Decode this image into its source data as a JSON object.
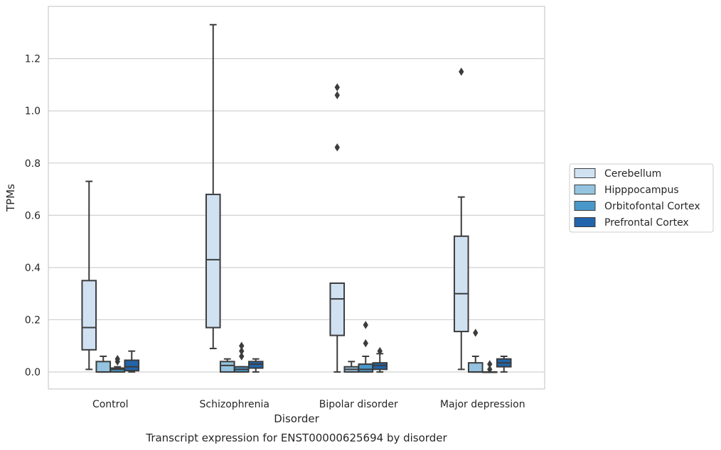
{
  "chart_data": {
    "type": "box",
    "caption": "Transcript expression for ENST00000625694 by disorder",
    "xlabel": "Disorder",
    "ylabel": "TPMs",
    "categories": [
      "Control",
      "Schizophrenia",
      "Bipolar disorder",
      "Major depression"
    ],
    "ylim": [
      -0.065,
      1.4
    ],
    "yticks": [
      0.0,
      0.2,
      0.4,
      0.6,
      0.8,
      1.0,
      1.2
    ],
    "ytick_labels": [
      "0.0",
      "0.2",
      "0.4",
      "0.6",
      "0.8",
      "1.0",
      "1.2"
    ],
    "grid": "horizontal",
    "legend_position": "right",
    "series": [
      {
        "name": "Cerebellum",
        "color": "#d0e1f2",
        "boxes": [
          {
            "whislo": 0.01,
            "q1": 0.085,
            "med": 0.17,
            "q3": 0.35,
            "whishi": 0.73,
            "fliers": []
          },
          {
            "whislo": 0.09,
            "q1": 0.17,
            "med": 0.43,
            "q3": 0.68,
            "whishi": 1.33,
            "fliers": []
          },
          {
            "whislo": 0.0,
            "q1": 0.14,
            "med": 0.28,
            "q3": 0.34,
            "whishi": 0.34,
            "fliers": [
              0.86,
              1.06,
              1.09
            ]
          },
          {
            "whislo": 0.01,
            "q1": 0.155,
            "med": 0.3,
            "q3": 0.52,
            "whishi": 0.67,
            "fliers": [
              1.15
            ]
          }
        ]
      },
      {
        "name": "Hipppocampus",
        "color": "#94c4df",
        "boxes": [
          {
            "whislo": 0.0,
            "q1": 0.0,
            "med": 0.0,
            "q3": 0.04,
            "whishi": 0.06,
            "fliers": []
          },
          {
            "whislo": 0.0,
            "q1": 0.0,
            "med": 0.025,
            "q3": 0.04,
            "whishi": 0.05,
            "fliers": []
          },
          {
            "whislo": 0.0,
            "q1": 0.0,
            "med": 0.01,
            "q3": 0.02,
            "whishi": 0.04,
            "fliers": []
          },
          {
            "whislo": 0.0,
            "q1": 0.0,
            "med": 0.0,
            "q3": 0.035,
            "whishi": 0.06,
            "fliers": [
              0.15
            ]
          }
        ]
      },
      {
        "name": "Orbitofontal Cortex",
        "color": "#4a98c9",
        "boxes": [
          {
            "whislo": 0.0,
            "q1": 0.0,
            "med": 0.01,
            "q3": 0.015,
            "whishi": 0.02,
            "fliers": [
              0.04,
              0.05
            ]
          },
          {
            "whislo": 0.0,
            "q1": 0.0,
            "med": 0.01,
            "q3": 0.02,
            "whishi": 0.02,
            "fliers": [
              0.06,
              0.08,
              0.1
            ]
          },
          {
            "whislo": 0.0,
            "q1": 0.0,
            "med": 0.01,
            "q3": 0.03,
            "whishi": 0.06,
            "fliers": [
              0.11,
              0.18
            ]
          },
          {
            "whislo": 0.0,
            "q1": 0.0,
            "med": 0.0,
            "q3": 0.0,
            "whishi": 0.0,
            "fliers": [
              0.01,
              0.03
            ]
          }
        ]
      },
      {
        "name": "Prefrontal Cortex",
        "color": "#2164ab",
        "boxes": [
          {
            "whislo": 0.0,
            "q1": 0.005,
            "med": 0.02,
            "q3": 0.045,
            "whishi": 0.08,
            "fliers": []
          },
          {
            "whislo": 0.0,
            "q1": 0.015,
            "med": 0.03,
            "q3": 0.04,
            "whishi": 0.05,
            "fliers": []
          },
          {
            "whislo": 0.0,
            "q1": 0.01,
            "med": 0.025,
            "q3": 0.035,
            "whishi": 0.07,
            "fliers": [
              0.08
            ]
          },
          {
            "whislo": 0.0,
            "q1": 0.02,
            "med": 0.035,
            "q3": 0.05,
            "whishi": 0.06,
            "fliers": []
          }
        ]
      }
    ]
  }
}
